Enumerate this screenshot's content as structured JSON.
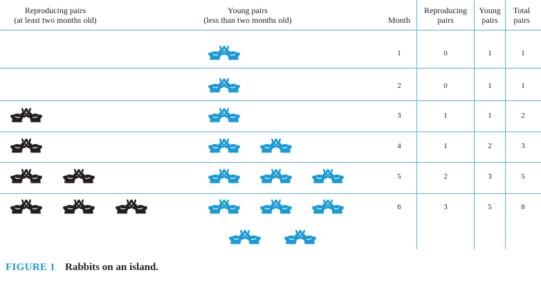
{
  "headers": {
    "reproducing": [
      "Reproducing pairs",
      "(at least two months old)"
    ],
    "young": [
      "Young pairs",
      "(less than two months old)"
    ],
    "month": "Month",
    "col_reproducing": [
      "Reproducing",
      "pairs"
    ],
    "col_young": [
      "Young",
      "pairs"
    ],
    "col_total": [
      "Total",
      "pairs"
    ]
  },
  "rows": [
    {
      "month": "1",
      "reproducing": "0",
      "young": "1",
      "total": "1",
      "adult_icons": 0,
      "young_icons": 1
    },
    {
      "month": "2",
      "reproducing": "0",
      "young": "1",
      "total": "1",
      "adult_icons": 0,
      "young_icons": 1
    },
    {
      "month": "3",
      "reproducing": "1",
      "young": "1",
      "total": "2",
      "adult_icons": 1,
      "young_icons": 1
    },
    {
      "month": "4",
      "reproducing": "1",
      "young": "2",
      "total": "3",
      "adult_icons": 1,
      "young_icons": 2
    },
    {
      "month": "5",
      "reproducing": "2",
      "young": "3",
      "total": "5",
      "adult_icons": 2,
      "young_icons": 3
    },
    {
      "month": "6",
      "reproducing": "3",
      "young": "5",
      "total": "8",
      "adult_icons": 3,
      "young_icons": 5
    }
  ],
  "icons": {
    "adult": "black-rabbit-pair-icon",
    "young": "blue-rabbit-pair-icon"
  },
  "colors": {
    "adult": "#231f20",
    "young": "#1a9ad6",
    "rule": "#5bb0d6",
    "caption_label": "#1a9ad6"
  },
  "caption": {
    "label": "FIGURE 1",
    "title": "Rabbits on an island."
  }
}
